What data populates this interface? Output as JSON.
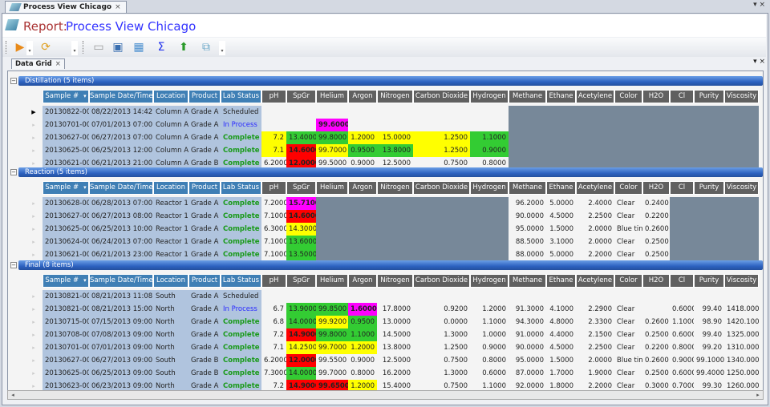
{
  "window": {
    "tab_title": "Process View Chicago",
    "close": "×",
    "controls": "▾ ×"
  },
  "report": {
    "label": "Report:",
    "name": "Process View Chicago"
  },
  "toolbar": {
    "icons": [
      "run-icon",
      "refresh-icon",
      "card-icon",
      "monitor-icon",
      "table-icon",
      "sum-icon",
      "export-icon",
      "report-icon"
    ],
    "glyphs": [
      "▶",
      "⟳",
      "▭",
      "▣",
      "▦",
      "Σ",
      "⬆",
      "⧉"
    ]
  },
  "grid_tab": {
    "title": "Data Grid",
    "close": "×",
    "controls": "▾ ×"
  },
  "colors": {
    "yellow": "#ffff00",
    "green": "#33cc33",
    "red": "#ff0000",
    "magenta": "#ff00ff",
    "gray": "#778899",
    "key_bg": "#b0c4de"
  },
  "columns": [
    "Sample #",
    "Sample Date/Time",
    "Location",
    "Product",
    "Lab Status",
    "pH",
    "SpGr",
    "Helium",
    "Argon",
    "Nitrogen",
    "Carbon Dioxide",
    "Hydrogen",
    "Methane",
    "Ethane",
    "Acetylene",
    "Color",
    "H2O",
    "Cl",
    "Purity",
    "Viscosity"
  ],
  "sort_glyph": "▾",
  "sections": [
    {
      "title": "Distillation (5 items)",
      "gray_cols": [
        12,
        13,
        14,
        15,
        16,
        17,
        18,
        19
      ],
      "rows": [
        {
          "current": true,
          "values": [
            "20130822-000",
            "08/22/2013 14:42",
            "Column A",
            "Grade A",
            "Scheduled",
            "",
            "",
            "",
            "",
            "",
            "",
            "",
            "",
            "",
            "",
            "",
            "",
            "",
            "",
            ""
          ],
          "flags": ""
        },
        {
          "values": [
            "20130701-001",
            "07/01/2013 07:00",
            "Column A",
            "Grade A",
            "In Process",
            "",
            "",
            "99.6000",
            "",
            "",
            "",
            "",
            "",
            "",
            "",
            "",
            "",
            "",
            "",
            ""
          ],
          "flags": "..m...."
        },
        {
          "values": [
            "20130627-000",
            "06/27/2013 07:00",
            "Column A",
            "Grade A",
            "Complete",
            "7.2",
            "13.4000",
            "99.8000",
            "1.2000",
            "15.0000",
            "1.2500",
            "1.1000",
            "",
            "",
            "",
            "",
            "",
            "",
            "",
            ""
          ],
          "flags": "yggyyyg"
        },
        {
          "values": [
            "20130625-003",
            "06/25/2013 12:00",
            "Column A",
            "Grade A",
            "Complete",
            "7.1",
            "14.6000",
            "99.7000",
            "0.9500",
            "13.8000",
            "1.2500",
            "0.9000",
            "",
            "",
            "",
            "",
            "",
            "",
            "",
            ""
          ],
          "flags": "yryggyg"
        },
        {
          "values": [
            "20130621-003",
            "06/21/2013 21:00",
            "Column A",
            "Grade B",
            "Complete",
            "6.2000",
            "12.0000",
            "99.5000",
            "0.9000",
            "12.5000",
            "0.7500",
            "0.8000",
            "",
            "",
            "",
            "",
            "",
            "",
            "",
            ""
          ],
          "flags": ".r....."
        }
      ]
    },
    {
      "title": "Reaction (5 items)",
      "gray_cols": [
        7,
        8,
        9,
        10,
        11,
        17,
        18,
        19
      ],
      "rows": [
        {
          "values": [
            "20130628-000",
            "06/28/2013 07:00",
            "Reactor 1",
            "Grade A",
            "Complete",
            "7.2000",
            "15.7100",
            "",
            "",
            "",
            "",
            "",
            "96.2000",
            "5.0000",
            "2.4000",
            "Clear",
            "0.2400",
            "",
            "",
            ""
          ],
          "flags": ".m....."
        },
        {
          "values": [
            "20130627-001",
            "06/27/2013 08:00",
            "Reactor 1",
            "Grade A",
            "Complete",
            "7.1000",
            "14.6000",
            "",
            "",
            "",
            "",
            "",
            "90.0000",
            "4.5000",
            "2.2500",
            "Clear",
            "0.2200",
            "",
            "",
            ""
          ],
          "flags": ".r....."
        },
        {
          "values": [
            "20130625-002",
            "06/25/2013 10:00",
            "Reactor 1",
            "Grade A",
            "Complete",
            "6.3000",
            "14.3000",
            "",
            "",
            "",
            "",
            "",
            "95.0000",
            "1.5000",
            "2.0000",
            "Blue tint",
            "0.2600",
            "",
            "",
            ""
          ],
          "flags": ".y....."
        },
        {
          "values": [
            "20130624-001",
            "06/24/2013 07:00",
            "Reactor 1",
            "Grade A",
            "Complete",
            "7.1000",
            "13.6000",
            "",
            "",
            "",
            "",
            "",
            "88.5000",
            "3.1000",
            "2.0000",
            "Clear",
            "0.2500",
            "",
            "",
            ""
          ],
          "flags": ".g....."
        },
        {
          "values": [
            "20130621-004",
            "06/21/2013 23:00",
            "Reactor 1",
            "Grade A",
            "Complete",
            "7.1000",
            "13.5000",
            "",
            "",
            "",
            "",
            "",
            "88.0000",
            "5.0000",
            "2.2000",
            "Clear",
            "0.2500",
            "",
            "",
            ""
          ],
          "flags": ".g....."
        }
      ]
    },
    {
      "title": "Final (8 items)",
      "gray_cols": [],
      "rows": [
        {
          "values": [
            "20130821-002",
            "08/21/2013 11:08",
            "South",
            "Grade A",
            "Scheduled",
            "",
            "",
            "",
            "",
            "",
            "",
            "",
            "",
            "",
            "",
            "",
            "",
            "",
            "",
            ""
          ],
          "flags": ""
        },
        {
          "values": [
            "20130821-001",
            "08/21/2013 15:00",
            "North",
            "Grade A",
            "In Process",
            "6.7",
            "13.9000",
            "99.8500",
            "1.6000",
            "17.8000",
            "0.9200",
            "1.2000",
            "91.3000",
            "4.1000",
            "2.2900",
            "Clear",
            "",
            "0.6000",
            "99.40",
            "1418.0000"
          ],
          "flags": ".ggm..."
        },
        {
          "values": [
            "20130715-000",
            "07/15/2013 09:00",
            "North",
            "Grade A",
            "Complete",
            "6.8",
            "14.0000",
            "99.9200",
            "0.9500",
            "13.0000",
            "0.0000",
            "1.1000",
            "94.3000",
            "4.8000",
            "2.3300",
            "Clear",
            "0.2600",
            "1.1000",
            "98.90",
            "1420.1000"
          ],
          "flags": ".gyg..."
        },
        {
          "values": [
            "20130708-000",
            "07/08/2013 09:00",
            "North",
            "Grade A",
            "Complete",
            "7.2",
            "14.9000",
            "99.8000",
            "1.1000",
            "14.5000",
            "1.3000",
            "1.0000",
            "91.0000",
            "4.4000",
            "2.1500",
            "Clear",
            "0.2500",
            "0.6000",
            "99.40",
            "1325.0000"
          ],
          "flags": ".rgg..."
        },
        {
          "values": [
            "20130701-002",
            "07/01/2013 09:00",
            "North",
            "Grade A",
            "Complete",
            "7.1",
            "14.2500",
            "99.7000",
            "1.2000",
            "13.8000",
            "1.2500",
            "0.9000",
            "90.0000",
            "4.5000",
            "2.2500",
            "Clear",
            "0.2200",
            "0.8000",
            "99.20",
            "1310.0000"
          ],
          "flags": ".yyy..."
        },
        {
          "values": [
            "20130627-002",
            "06/27/2013 09:00",
            "South",
            "Grade B",
            "Complete",
            "6.2000",
            "12.0000",
            "99.5500",
            "0.9000",
            "12.5000",
            "0.7500",
            "0.8000",
            "95.0000",
            "1.5000",
            "2.0000",
            "Blue tint",
            "0.2600",
            "0.9000",
            "99.1000",
            "1340.0000"
          ],
          "flags": ".r....."
        },
        {
          "values": [
            "20130625-000",
            "06/25/2013 09:00",
            "South",
            "Grade B",
            "Complete",
            "7.3000",
            "14.0000",
            "99.7000",
            "0.8000",
            "16.2000",
            "1.3000",
            "0.6000",
            "87.0000",
            "1.7000",
            "1.9000",
            "Clear",
            "0.2500",
            "0.6000",
            "99.4000",
            "1250.0000"
          ],
          "flags": ".g....."
        },
        {
          "values": [
            "20130623-000",
            "06/23/2013 09:00",
            "North",
            "Grade A",
            "Complete",
            "7.2",
            "14.9000",
            "99.6500",
            "1.2000",
            "15.4000",
            "0.7500",
            "1.1000",
            "92.0000",
            "1.8000",
            "2.2000",
            "Clear",
            "0.3000",
            "0.7000",
            "99.30",
            "1260.0000"
          ],
          "flags": ".rry..."
        }
      ]
    }
  ],
  "scroll": {
    "left": "◂",
    "right": "▸"
  }
}
